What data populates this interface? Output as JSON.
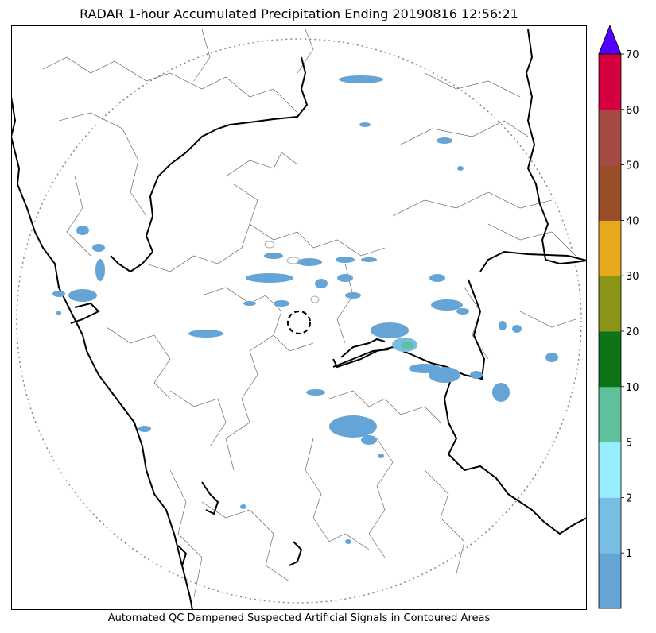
{
  "title": "RADAR 1-hour Accumulated Precipitation Ending 20190816 12:56:21",
  "footer": "Automated QC Dampened Suspected Artificial Signals in Contoured Areas",
  "colorbar": {
    "ticks": [
      "1",
      "2",
      "5",
      "10",
      "20",
      "30",
      "40",
      "50",
      "60",
      "70"
    ],
    "colors": [
      "#64a4d6",
      "#78bde4",
      "#96eefe",
      "#5ec39c",
      "#0d7418",
      "#8a9416",
      "#e7a81c",
      "#9a4e28",
      "#a44b45",
      "#d4003f"
    ],
    "extend_color": "#5400fe"
  }
}
